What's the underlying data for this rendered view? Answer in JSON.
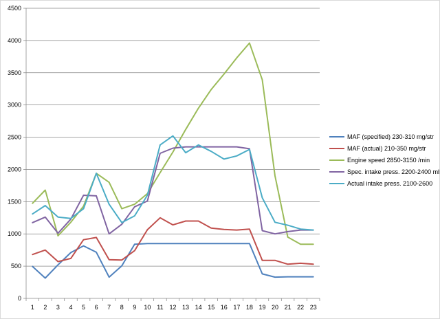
{
  "chart_data": {
    "type": "line",
    "title": "",
    "xlabel": "",
    "ylabel": "",
    "categories": [
      "1",
      "2",
      "3",
      "4",
      "5",
      "6",
      "7",
      "8",
      "9",
      "10",
      "11",
      "12",
      "13",
      "14",
      "15",
      "16",
      "17",
      "18",
      "19",
      "20",
      "21",
      "22",
      "23"
    ],
    "ylim": [
      0,
      4500
    ],
    "yticks": [
      "0",
      "500",
      "1000",
      "1500",
      "2000",
      "2500",
      "3000",
      "3500",
      "4000",
      "4500"
    ],
    "grid": "horizontal",
    "legend_position": "right",
    "series": [
      {
        "name": "MAF (specified) 230-310  mg/str",
        "color": "#4F81BD",
        "values": [
          495,
          315,
          520,
          710,
          815,
          715,
          330,
          505,
          840,
          850,
          850,
          850,
          850,
          850,
          850,
          850,
          850,
          850,
          380,
          330,
          335,
          335,
          335
        ]
      },
      {
        "name": "MAF (actual)  210-350  mg/str",
        "color": "#C0504D",
        "values": [
          680,
          750,
          570,
          620,
          910,
          945,
          600,
          595,
          740,
          1065,
          1250,
          1140,
          1200,
          1200,
          1090,
          1070,
          1060,
          1075,
          590,
          590,
          530,
          545,
          530
        ]
      },
      {
        "name": "Engine speed 2850-3150  /min",
        "color": "#9BBB59",
        "values": [
          1475,
          1680,
          970,
          1180,
          1430,
          1940,
          1800,
          1390,
          1460,
          1625,
          1950,
          2270,
          2620,
          2950,
          3240,
          3480,
          3730,
          3960,
          3390,
          1900,
          950,
          840,
          840
        ]
      },
      {
        "name": "Spec. intake press.  2200-2400  mbar",
        "color": "#8064A2",
        "values": [
          1175,
          1260,
          1010,
          1230,
          1600,
          1590,
          1000,
          1150,
          1420,
          1510,
          2250,
          2330,
          2350,
          2350,
          2350,
          2350,
          2350,
          2320,
          1050,
          1000,
          1035,
          1060,
          1060
        ]
      },
      {
        "name": "Actual intake press.  2100-2600",
        "color": "#4BACC6",
        "values": [
          1310,
          1440,
          1260,
          1240,
          1390,
          1940,
          1460,
          1175,
          1280,
          1600,
          2380,
          2520,
          2260,
          2380,
          2280,
          2160,
          2210,
          2310,
          1560,
          1180,
          1135,
          1075,
          1060
        ]
      }
    ]
  }
}
